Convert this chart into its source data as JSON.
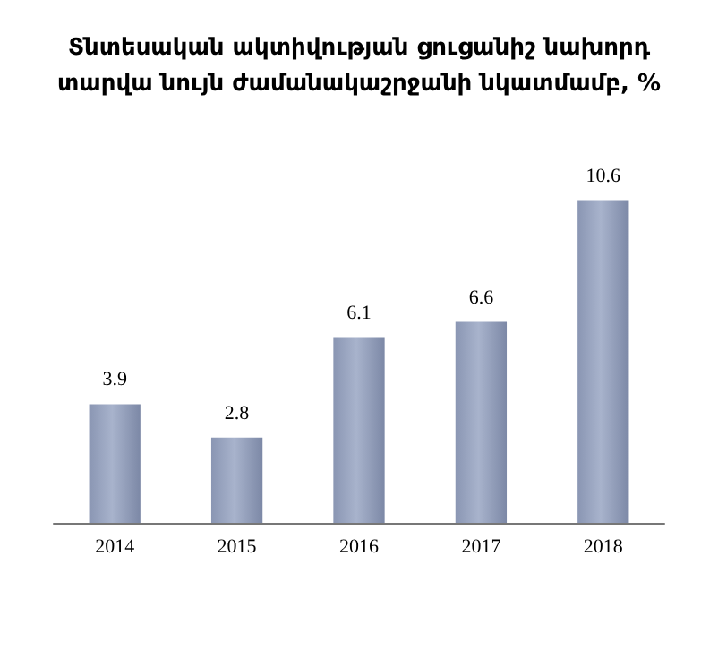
{
  "chart_data": {
    "type": "bar",
    "title": "Տնտեսական ակտիվության ցուցանիշ նախորդ\nտարվա նույն ժամանակաշրջանի նկատմամբ, %",
    "categories": [
      "2014",
      "2015",
      "2016",
      "2017",
      "2018"
    ],
    "values": [
      3.9,
      2.8,
      6.1,
      6.6,
      10.6
    ],
    "color": "#a8b3cc",
    "data_labels": true
  }
}
